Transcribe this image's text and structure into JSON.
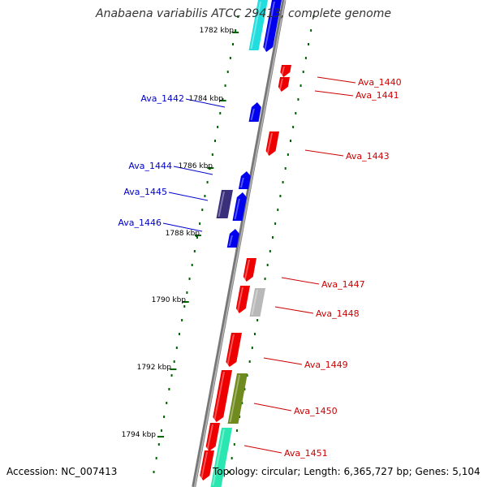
{
  "title": "Anabaena variabilis ATCC 29413, complete genome",
  "footer": {
    "accession": "Accession: NC_007413",
    "topology": "Topology: circular; Length: 6,365,727 bp; Genes: 5,104"
  },
  "colors": {
    "backbone": "#888888",
    "forward_gene": "#0000ee",
    "forward_label": "#0000cc",
    "reverse_gene": "#ee0000",
    "reverse_label": "#cc0000",
    "tick": "#006400",
    "cyan_feature": "#22dddd",
    "indigo_feature": "#3a2f7a",
    "gray_feature": "#b8b8b8",
    "olive_feature": "#6f8a1e",
    "green_feature": "#2ae6b0"
  },
  "kbp_labels": [
    "1782 kbp",
    "1784 kbp",
    "1786 kbp",
    "1788 kbp",
    "1790 kbp",
    "1792 kbp",
    "1794 kbp"
  ],
  "genes_forward": [
    "Ava_1442",
    "Ava_1444",
    "Ava_1445",
    "Ava_1446"
  ],
  "genes_reverse": [
    "Ava_1440",
    "Ava_1441",
    "Ava_1443",
    "Ava_1447",
    "Ava_1448",
    "Ava_1449",
    "Ava_1450",
    "Ava_1451"
  ]
}
